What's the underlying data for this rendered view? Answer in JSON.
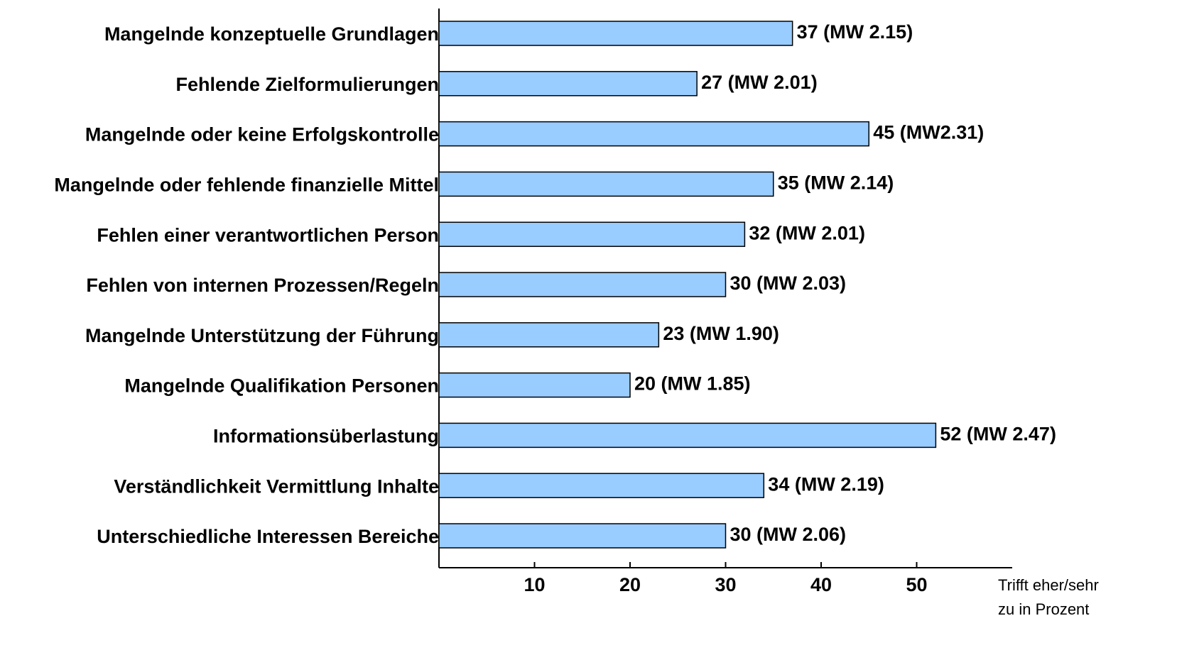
{
  "chart_data": {
    "type": "bar",
    "orientation": "horizontal",
    "categories": [
      "Mangelnde konzeptuelle Grundlagen",
      "Fehlende Zielformulierungen",
      "Mangelnde oder keine Erfolgskontrolle",
      "Mangelnde oder fehlende finanzielle Mittel",
      "Fehlen einer verantwortlichen Person",
      "Fehlen von internen Prozessen/Regeln",
      "Mangelnde Unterstützung der Führung",
      "Mangelnde Qualifikation Personen",
      "Informationsüberlastung",
      "Verständlichkeit Vermittlung Inhalte",
      "Unterschiedliche Interessen Bereiche"
    ],
    "values": [
      37,
      27,
      45,
      35,
      32,
      30,
      23,
      20,
      52,
      34,
      30
    ],
    "value_labels": [
      "37 (MW 2.15)",
      "27 (MW 2.01)",
      "45 (MW2.31)",
      "35 (MW 2.14)",
      "32 (MW 2.01)",
      "30 (MW 2.03)",
      "23 (MW 1.90)",
      "20 (MW 1.85)",
      "52 (MW 2.47)",
      "34 (MW 2.19)",
      "30 (MW 2.06)"
    ],
    "color": "#99ccff",
    "x_label": [
      "Trifft eher/sehr",
      "zu in Prozent"
    ],
    "xlim": [
      0,
      60
    ],
    "xticks": [
      10,
      20,
      30,
      40,
      50
    ],
    "grid": false
  }
}
